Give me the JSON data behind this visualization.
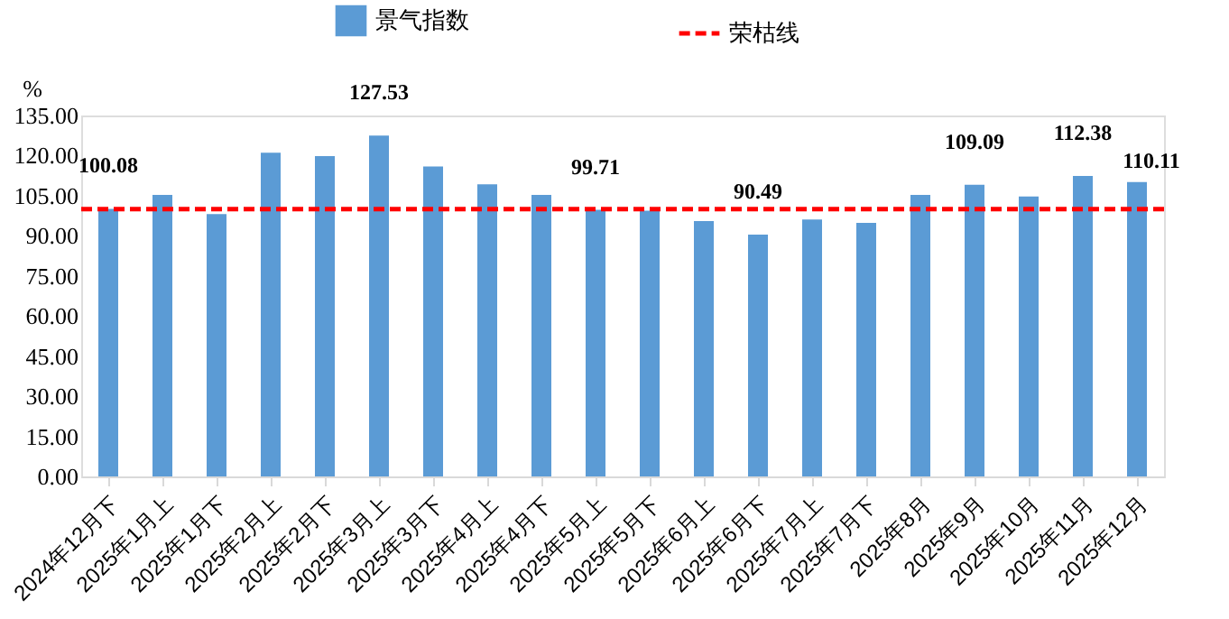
{
  "chart_data": {
    "type": "bar",
    "ylabel": "%",
    "categories": [
      "2024年12月下",
      "2025年1月上",
      "2025年1月下",
      "2025年2月上",
      "2025年2月下",
      "2025年3月上",
      "2025年3月下",
      "2025年4月上",
      "2025年4月下",
      "2025年5月上",
      "2025年5月下",
      "2025年6月上",
      "2025年6月下",
      "2025年7月上",
      "2025年7月下",
      "2025年8月",
      "2025年9月",
      "2025年10月",
      "2025年11月",
      "2025年12月"
    ],
    "series": [
      {
        "name": "景气指数",
        "color": "#5b9bd5",
        "values": [
          100.08,
          105.3,
          98.1,
          121.1,
          119.8,
          127.53,
          115.9,
          109.3,
          105.3,
          99.71,
          99.4,
          95.5,
          90.49,
          96.1,
          94.8,
          105.3,
          109.09,
          104.7,
          112.38,
          110.11
        ],
        "value_labels": [
          "100.08",
          null,
          null,
          null,
          null,
          "127.53",
          null,
          null,
          null,
          "99.71",
          null,
          null,
          "90.49",
          null,
          null,
          null,
          "109.09",
          null,
          "112.38",
          "110.11"
        ]
      }
    ],
    "ref_lines": [
      {
        "axis": "y",
        "value": 100,
        "label": "荣枯线",
        "color": "#ff0000",
        "line_style": "dashed"
      }
    ],
    "ylim": [
      0,
      135
    ],
    "yticks": [
      {
        "value": 0,
        "label": "0.00"
      },
      {
        "value": 15,
        "label": "15.00"
      },
      {
        "value": 30,
        "label": "30.00"
      },
      {
        "value": 45,
        "label": "45.00"
      },
      {
        "value": 60,
        "label": "60.00"
      },
      {
        "value": 75,
        "label": "75.00"
      },
      {
        "value": 90,
        "label": "90.00"
      },
      {
        "value": 105,
        "label": "105.00"
      },
      {
        "value": 120,
        "label": "120.00"
      },
      {
        "value": 135,
        "label": "135.00"
      }
    ],
    "grid": false,
    "legend": "top"
  }
}
